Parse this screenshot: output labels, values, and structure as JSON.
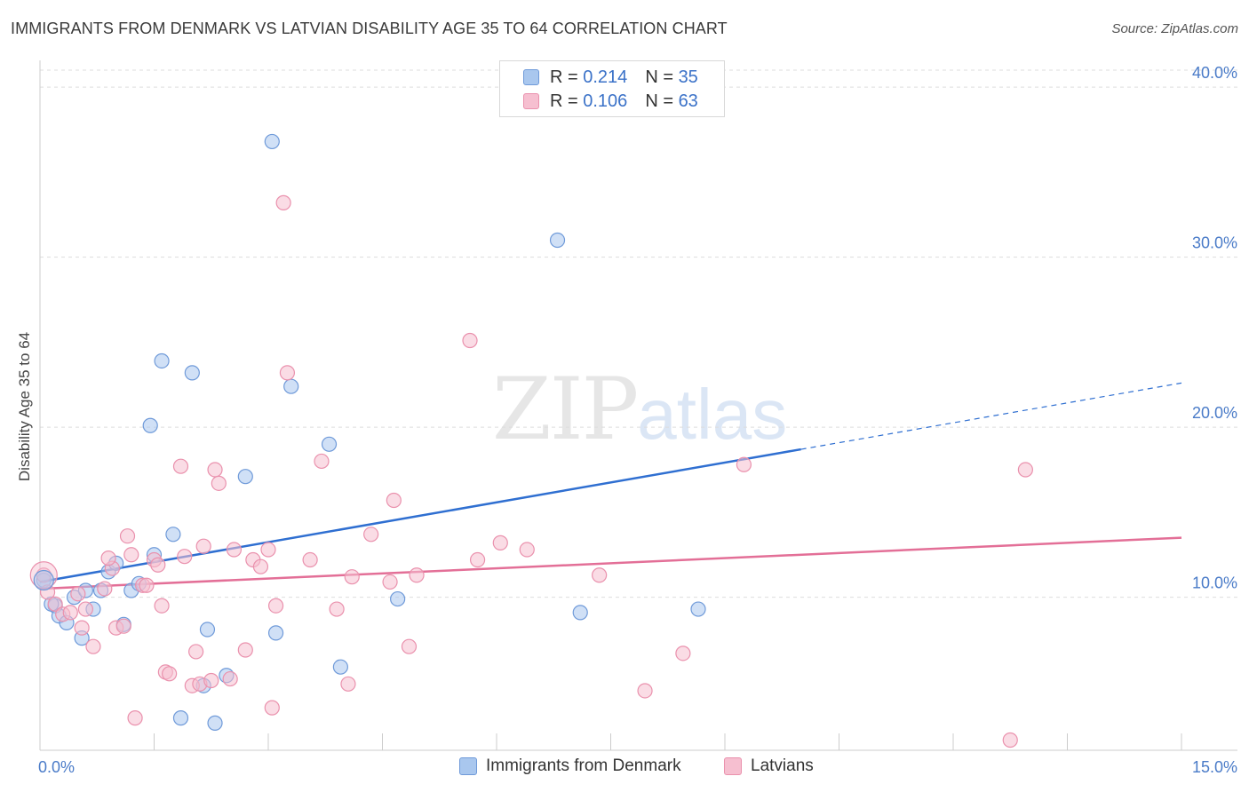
{
  "header": {
    "title": "IMMIGRANTS FROM DENMARK VS LATVIAN DISABILITY AGE 35 TO 64 CORRELATION CHART",
    "source": "Source: ZipAtlas.com"
  },
  "watermark": {
    "zip": "ZIP",
    "atlas": "atlas"
  },
  "legend": {
    "rows": [
      {
        "r_label": "R = ",
        "r_value": "0.214",
        "n_label": "N = ",
        "n_value": "35"
      },
      {
        "r_label": "R = ",
        "r_value": "0.106",
        "n_label": "N = ",
        "n_value": "63"
      }
    ]
  },
  "colors": {
    "blue_fill": "#a9c7ee",
    "blue_stroke": "#6f9ad9",
    "blue_line": "#2f6fd1",
    "pink_fill": "#f6bfd0",
    "pink_stroke": "#ea91ad",
    "pink_line": "#e36f97",
    "tick_label": "#4a7bc8",
    "grid": "#dddddd"
  },
  "chart_data": {
    "type": "scatter",
    "title": "IMMIGRANTS FROM DENMARK VS LATVIAN DISABILITY AGE 35 TO 64 CORRELATION CHART",
    "xlabel": "",
    "ylabel": "Disability Age 35 to 64",
    "xlim": [
      0,
      15
    ],
    "ylim": [
      0,
      40
    ],
    "x_tick_labels": [
      "0.0%",
      "15.0%"
    ],
    "y_ticks": [
      10,
      20,
      30,
      40
    ],
    "y_tick_labels": [
      "10.0%",
      "20.0%",
      "30.0%",
      "40.0%"
    ],
    "grid": true,
    "series": [
      {
        "name": "Immigrants from Denmark",
        "color": "blue",
        "trend": {
          "x0": 0,
          "y0": 10.9,
          "x1": 10.0,
          "y1": 18.7,
          "dash_to_x": 15,
          "dash_to_y": 22.6
        },
        "points": [
          [
            0.05,
            11.0
          ],
          [
            0.2,
            9.5
          ],
          [
            0.25,
            8.9
          ],
          [
            0.35,
            8.5
          ],
          [
            0.45,
            10.0
          ],
          [
            0.55,
            7.6
          ],
          [
            0.6,
            10.4
          ],
          [
            0.7,
            9.3
          ],
          [
            0.8,
            10.4
          ],
          [
            0.9,
            11.5
          ],
          [
            1.0,
            12.0
          ],
          [
            1.1,
            8.4
          ],
          [
            1.2,
            10.4
          ],
          [
            1.3,
            10.8
          ],
          [
            1.45,
            20.1
          ],
          [
            1.5,
            12.5
          ],
          [
            1.6,
            23.9
          ],
          [
            1.75,
            13.7
          ],
          [
            1.85,
            2.9
          ],
          [
            2.0,
            23.2
          ],
          [
            2.15,
            4.8
          ],
          [
            2.2,
            8.1
          ],
          [
            2.3,
            2.6
          ],
          [
            2.45,
            5.4
          ],
          [
            2.7,
            17.1
          ],
          [
            3.05,
            36.8
          ],
          [
            3.1,
            7.9
          ],
          [
            3.3,
            22.4
          ],
          [
            3.8,
            19.0
          ],
          [
            3.95,
            5.9
          ],
          [
            4.7,
            9.9
          ],
          [
            6.8,
            31.0
          ],
          [
            7.1,
            9.1
          ],
          [
            8.65,
            9.3
          ],
          [
            0.15,
            9.6
          ]
        ]
      },
      {
        "name": "Latvians",
        "color": "pink",
        "trend": {
          "x0": 0,
          "y0": 10.5,
          "x1": 15,
          "y1": 13.5
        },
        "points": [
          [
            0.05,
            11.3
          ],
          [
            0.1,
            10.3
          ],
          [
            0.2,
            9.6
          ],
          [
            0.3,
            9.0
          ],
          [
            0.4,
            9.1
          ],
          [
            0.5,
            10.2
          ],
          [
            0.55,
            8.2
          ],
          [
            0.6,
            9.3
          ],
          [
            0.7,
            7.1
          ],
          [
            0.85,
            10.5
          ],
          [
            0.95,
            11.7
          ],
          [
            0.9,
            12.3
          ],
          [
            1.0,
            8.2
          ],
          [
            1.1,
            8.3
          ],
          [
            1.15,
            13.6
          ],
          [
            1.2,
            12.5
          ],
          [
            1.25,
            2.9
          ],
          [
            1.35,
            10.7
          ],
          [
            1.4,
            10.7
          ],
          [
            1.5,
            12.2
          ],
          [
            1.55,
            11.9
          ],
          [
            1.6,
            9.5
          ],
          [
            1.65,
            5.6
          ],
          [
            1.7,
            5.5
          ],
          [
            1.85,
            17.7
          ],
          [
            1.9,
            12.4
          ],
          [
            2.0,
            4.8
          ],
          [
            2.05,
            6.8
          ],
          [
            2.1,
            4.9
          ],
          [
            2.15,
            13.0
          ],
          [
            2.25,
            5.1
          ],
          [
            2.3,
            17.5
          ],
          [
            2.35,
            16.7
          ],
          [
            2.5,
            5.2
          ],
          [
            2.55,
            12.8
          ],
          [
            2.7,
            6.9
          ],
          [
            2.8,
            12.2
          ],
          [
            2.9,
            11.8
          ],
          [
            3.0,
            12.8
          ],
          [
            3.05,
            3.5
          ],
          [
            3.1,
            9.5
          ],
          [
            3.2,
            33.2
          ],
          [
            3.25,
            23.2
          ],
          [
            3.55,
            12.2
          ],
          [
            3.7,
            18.0
          ],
          [
            3.9,
            9.3
          ],
          [
            4.05,
            4.9
          ],
          [
            4.1,
            11.2
          ],
          [
            4.35,
            13.7
          ],
          [
            4.6,
            10.9
          ],
          [
            4.65,
            15.7
          ],
          [
            4.95,
            11.3
          ],
          [
            4.85,
            7.1
          ],
          [
            5.65,
            25.1
          ],
          [
            5.75,
            12.2
          ],
          [
            6.05,
            13.2
          ],
          [
            6.4,
            12.8
          ],
          [
            7.35,
            11.3
          ],
          [
            7.95,
            4.5
          ],
          [
            8.45,
            6.7
          ],
          [
            9.25,
            17.8
          ],
          [
            12.95,
            17.5
          ],
          [
            12.75,
            1.6
          ]
        ]
      }
    ]
  }
}
